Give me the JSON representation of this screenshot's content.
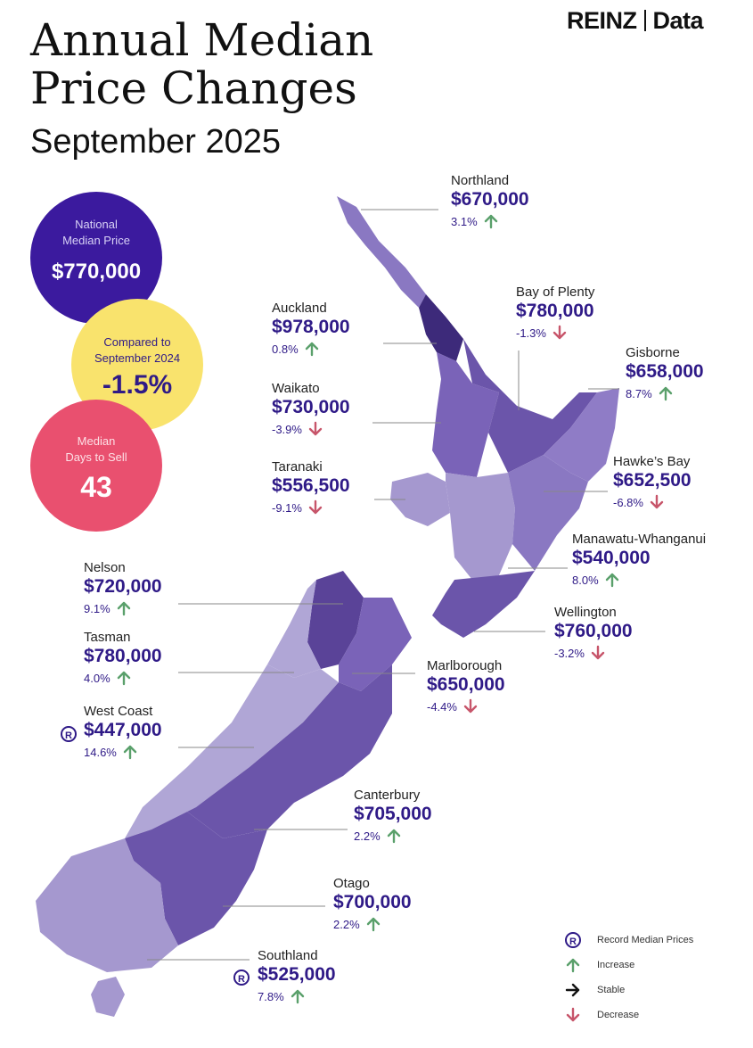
{
  "title_line1": "Annual Median",
  "title_line2": "Price Changes",
  "subtitle": "September 2025",
  "brand": {
    "left": "REINZ",
    "right": "Data"
  },
  "stats": {
    "national": {
      "label_line1": "National",
      "label_line2": "Median Price",
      "value": "$770,000"
    },
    "compared": {
      "label_line1": "Compared to",
      "label_line2": "September 2024",
      "value": "-1.5%"
    },
    "days": {
      "label_line1": "Median",
      "label_line2": "Days to Sell",
      "value": "43"
    }
  },
  "colors": {
    "increase": "#5aa06b",
    "decrease": "#c7556a",
    "stable": "#111111",
    "accent": "#2f1a87"
  },
  "regions": {
    "northland": {
      "name": "Northland",
      "price": "$670,000",
      "change": "3.1%",
      "trend": "increase"
    },
    "bay_of_plenty": {
      "name": "Bay of Plenty",
      "price": "$780,000",
      "change": "-1.3%",
      "trend": "decrease"
    },
    "auckland": {
      "name": "Auckland",
      "price": "$978,000",
      "change": "0.8%",
      "trend": "increase"
    },
    "gisborne": {
      "name": "Gisborne",
      "price": "$658,000",
      "change": "8.7%",
      "trend": "increase"
    },
    "waikato": {
      "name": "Waikato",
      "price": "$730,000",
      "change": "-3.9%",
      "trend": "decrease"
    },
    "hawkes_bay": {
      "name": "Hawke’s Bay",
      "price": "$652,500",
      "change": "-6.8%",
      "trend": "decrease"
    },
    "taranaki": {
      "name": "Taranaki",
      "price": "$556,500",
      "change": "-9.1%",
      "trend": "decrease"
    },
    "manawatu": {
      "name": "Manawatu-Whanganui",
      "price": "$540,000",
      "change": "8.0%",
      "trend": "increase"
    },
    "nelson": {
      "name": "Nelson",
      "price": "$720,000",
      "change": "9.1%",
      "trend": "increase"
    },
    "wellington": {
      "name": "Wellington",
      "price": "$760,000",
      "change": "-3.2%",
      "trend": "decrease"
    },
    "tasman": {
      "name": "Tasman",
      "price": "$780,000",
      "change": "4.0%",
      "trend": "increase"
    },
    "marlborough": {
      "name": "Marlborough",
      "price": "$650,000",
      "change": "-4.4%",
      "trend": "decrease"
    },
    "west_coast": {
      "name": "West Coast",
      "price": "$447,000",
      "change": "14.6%",
      "trend": "increase",
      "record": true
    },
    "canterbury": {
      "name": "Canterbury",
      "price": "$705,000",
      "change": "2.2%",
      "trend": "increase"
    },
    "otago": {
      "name": "Otago",
      "price": "$700,000",
      "change": "2.2%",
      "trend": "increase"
    },
    "southland": {
      "name": "Southland",
      "price": "$525,000",
      "change": "7.8%",
      "trend": "increase",
      "record": true
    }
  },
  "legend": {
    "record": "Record Median Prices",
    "increase": "Increase",
    "stable": "Stable",
    "decrease": "Decrease",
    "record_glyph": "R"
  }
}
